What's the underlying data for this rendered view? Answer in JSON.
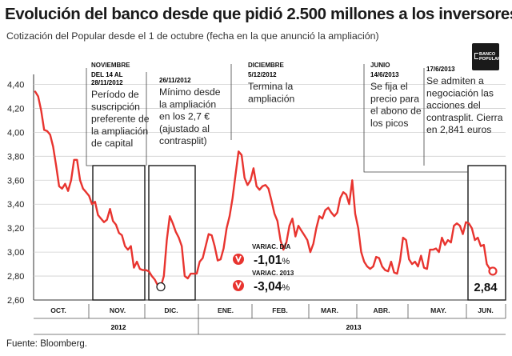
{
  "header": {
    "title": "Evolución del banco desde que pidió 2.500 millones a los inversores",
    "subtitle": "Cotización del Popular desde el 1 de octubre (fecha en la que anunció la ampliación)"
  },
  "logo": {
    "line1": "BANCO",
    "line2": "POPULAR",
    "icon": "banco-popular-logo"
  },
  "source": "Fuente: Bloomberg.",
  "chart_data": {
    "type": "line",
    "ylim": [
      2.6,
      4.45
    ],
    "y_ticks": [
      "4,40",
      "4,20",
      "4,00",
      "3,80",
      "3,60",
      "3,40",
      "3,20",
      "3,00",
      "2,80",
      "2,60"
    ],
    "y_tick_values": [
      4.4,
      4.2,
      4.0,
      3.8,
      3.6,
      3.4,
      3.2,
      3.0,
      2.8,
      2.6
    ],
    "months": [
      "OCT.",
      "NOV.",
      "DIC.",
      "ENE.",
      "FEB.",
      "MAR.",
      "ABR.",
      "MAY.",
      "JUN."
    ],
    "years": [
      "2012",
      "2013"
    ],
    "grid": true,
    "series": [
      {
        "values": [
          4.34,
          4.3,
          4.18,
          4.02,
          4.01,
          3.98,
          3.88,
          3.72,
          3.55,
          3.53,
          3.57,
          3.51,
          3.6,
          3.77,
          3.77,
          3.6,
          3.53,
          3.5,
          3.47,
          3.4,
          3.42,
          3.31,
          3.28,
          3.25,
          3.27,
          3.36,
          3.26,
          3.23,
          3.16,
          3.14,
          3.05,
          3.02,
          3.05,
          2.87,
          2.92,
          2.86,
          2.85,
          2.85,
          2.84,
          2.8,
          2.77,
          2.72,
          2.71,
          2.8,
          3.1,
          3.3,
          3.24,
          3.17,
          3.12,
          3.05,
          2.8,
          2.78,
          2.82,
          2.82,
          2.82,
          2.92,
          2.95,
          3.05,
          3.15,
          3.14,
          3.05,
          2.93,
          2.94,
          3.03,
          3.2,
          3.3,
          3.45,
          3.65,
          3.84,
          3.81,
          3.62,
          3.56,
          3.6,
          3.7,
          3.55,
          3.52,
          3.55,
          3.56,
          3.53,
          3.43,
          3.32,
          3.26,
          3.1,
          3.02,
          3.08,
          3.22,
          3.28,
          3.13,
          3.22,
          3.18,
          3.14,
          3.1,
          3.0,
          3.07,
          3.2,
          3.3,
          3.28,
          3.35,
          3.37,
          3.33,
          3.3,
          3.33,
          3.45,
          3.5,
          3.48,
          3.4,
          3.6,
          3.32,
          3.2,
          3.0,
          2.92,
          2.88,
          2.86,
          2.88,
          2.96,
          2.95,
          2.88,
          2.85,
          2.84,
          2.92,
          2.83,
          2.82,
          2.93,
          3.12,
          3.1,
          2.94,
          2.9,
          2.92,
          2.88,
          2.97,
          2.87,
          2.86,
          3.02,
          3.02,
          3.03,
          3.0,
          3.12,
          3.06,
          3.1,
          3.08,
          3.22,
          3.24,
          3.22,
          3.15,
          3.25,
          3.24,
          3.2,
          3.1,
          3.12,
          3.05,
          3.06,
          2.9,
          2.86,
          2.841
        ]
      }
    ],
    "last_value": 2.841,
    "last_value_label": "2,84",
    "variation": [
      {
        "label": "VARIAC. DÍA",
        "value": "-1,01",
        "unit": "%"
      },
      {
        "label": "VARIAC. 2013",
        "value": "-3,04",
        "unit": "%"
      }
    ],
    "annotations": [
      {
        "heading": "NOVIEMBRE",
        "date": "DEL 14 AL 28/11/2012",
        "text": [
          "Período de",
          "suscripción",
          "preferente de",
          "la ampliación",
          "de capital"
        ]
      },
      {
        "date": "26/11/2012",
        "text": [
          "Mínimo desde",
          "la ampliación",
          "en los 2,7 €",
          "(ajustado al",
          "contrasplit)"
        ]
      },
      {
        "heading": "DICIEMBRE",
        "date": "5/12/2012",
        "text": [
          "Termina la",
          "ampliación"
        ]
      },
      {
        "heading": "JUNIO",
        "date": "14/6/2013",
        "text": [
          "Se fija el",
          "precio para",
          "el abono de",
          "los picos"
        ]
      },
      {
        "date": "17/6/2013",
        "text": [
          "Se admiten a",
          "negociación las",
          "acciones del",
          "contrasplit. Cierra",
          "en 2,841 euros"
        ]
      }
    ],
    "colors": {
      "line": "#e8342f",
      "down_icon": "#e8342f",
      "grid": "#cfcfcf",
      "box": "#1a1a1a"
    }
  }
}
